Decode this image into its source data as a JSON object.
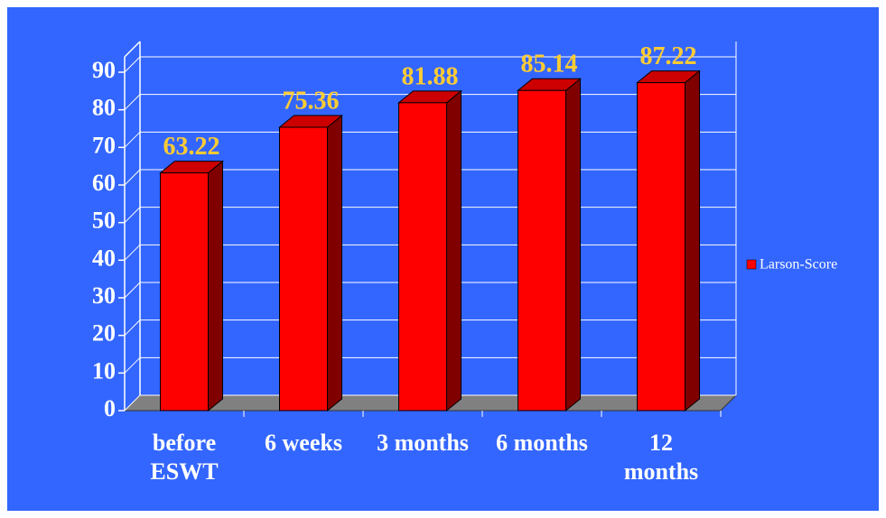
{
  "chart_data": {
    "type": "bar3d",
    "categories": [
      "before\nESWT",
      "6 weeks",
      "3 months",
      "6 months",
      "12\nmonths"
    ],
    "series": [
      {
        "name": "Larson-Score",
        "color": "#ff0000",
        "values": [
          63.22,
          75.36,
          81.88,
          85.14,
          87.22
        ]
      }
    ],
    "ylim": [
      0,
      90
    ],
    "yticks": [
      0,
      10,
      20,
      30,
      40,
      50,
      60,
      70,
      80,
      90
    ],
    "grid": true,
    "legend": "right"
  }
}
